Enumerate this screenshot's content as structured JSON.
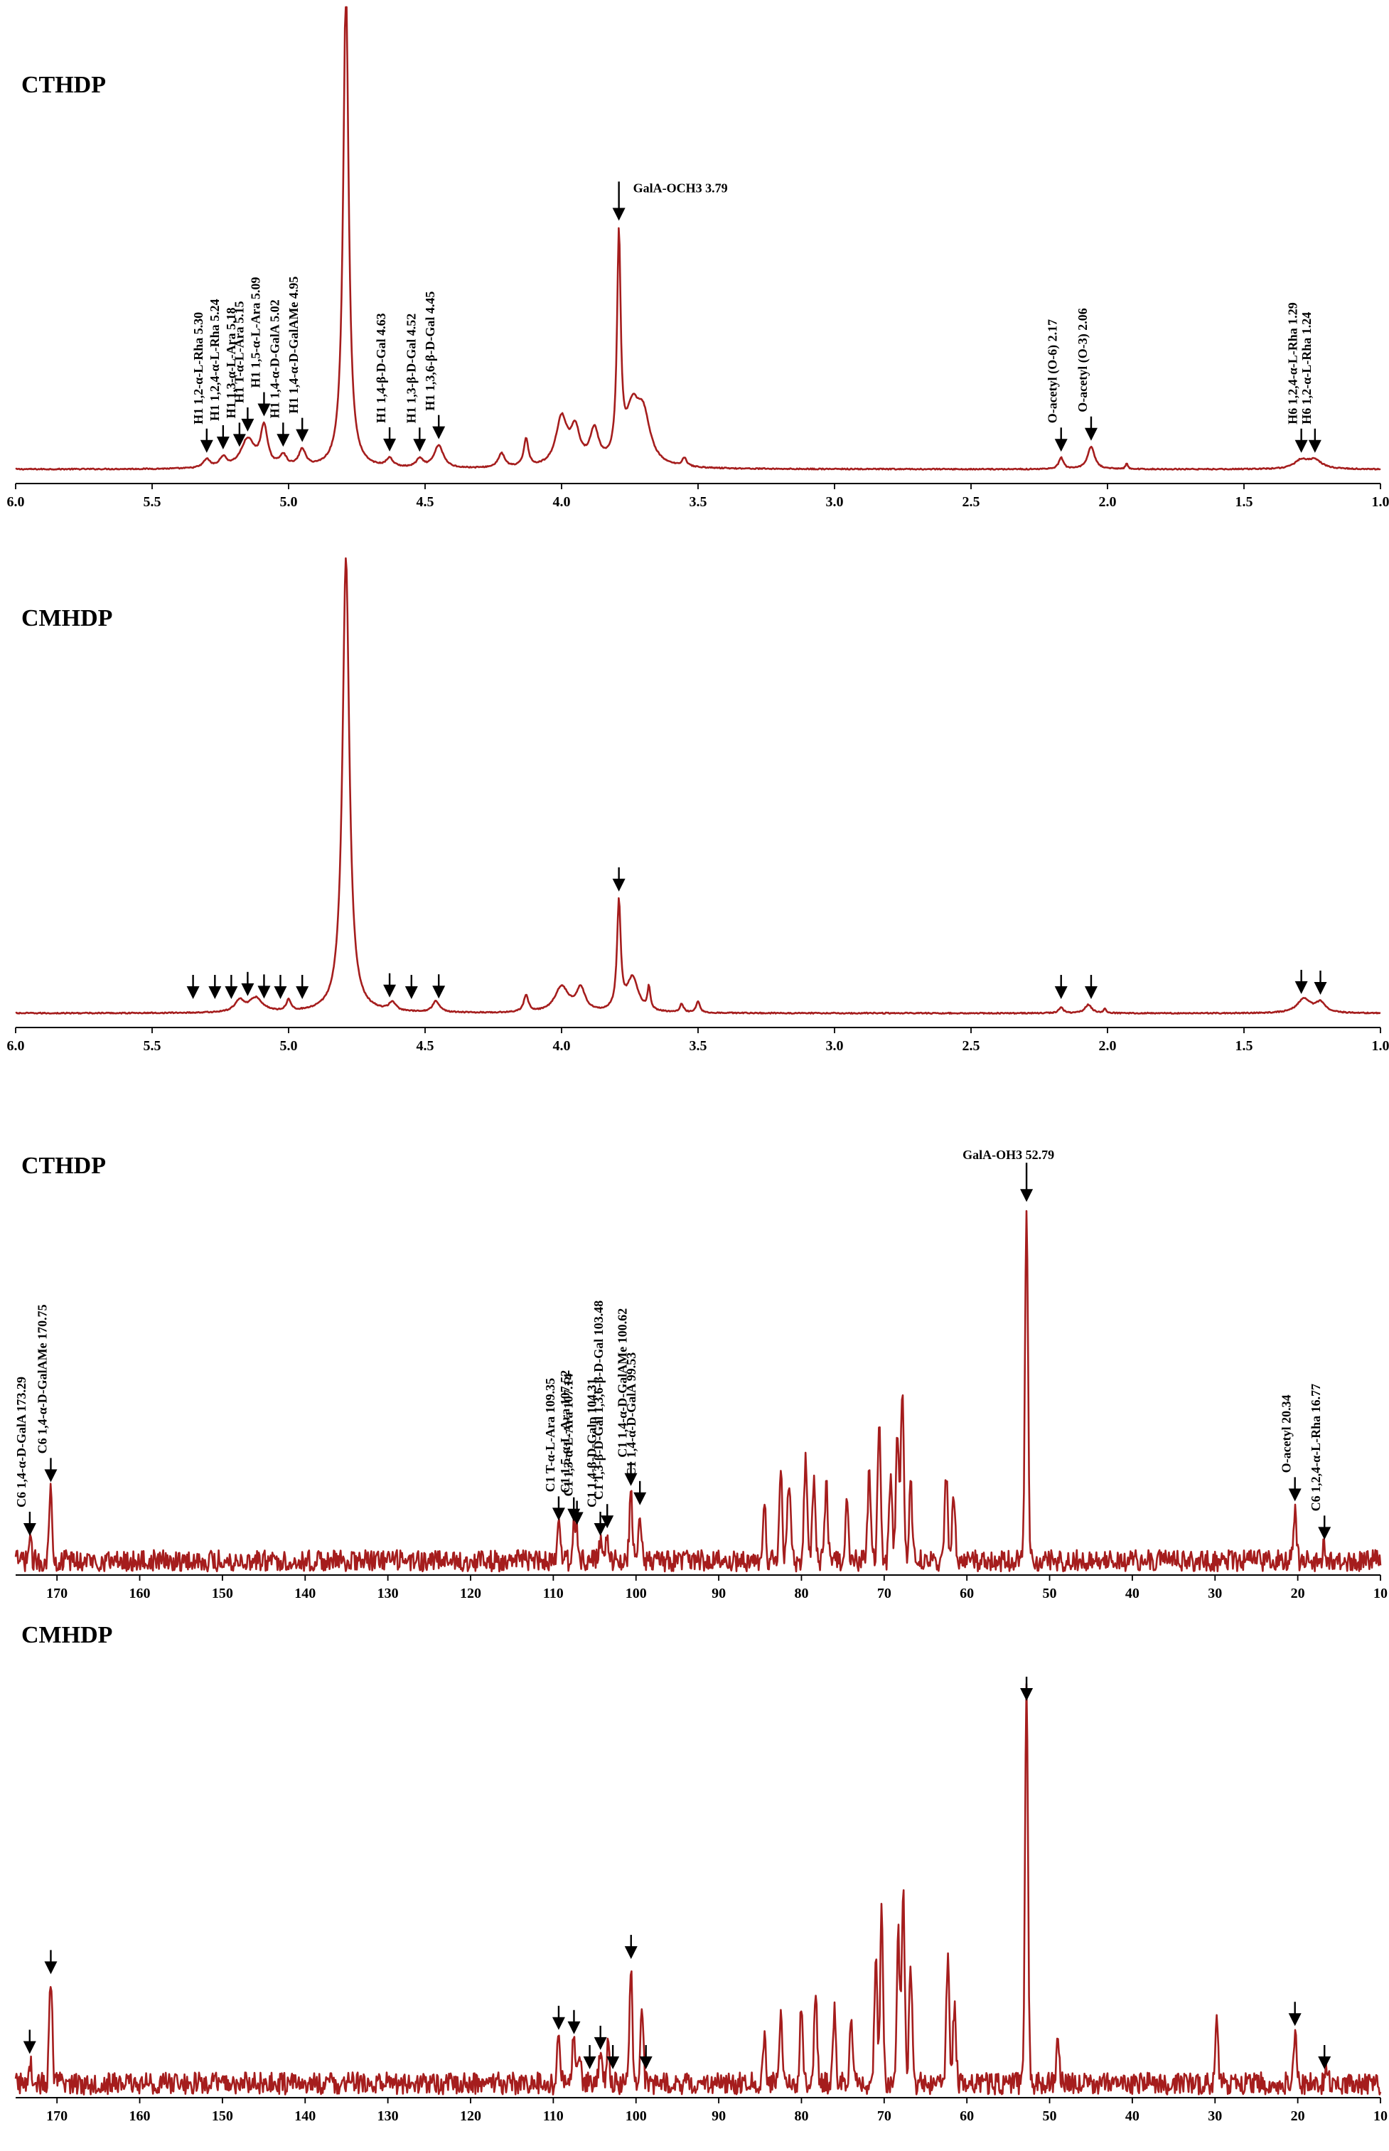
{
  "colors": {
    "spectrum": "#a51d1d",
    "axis": "#000000",
    "background": "#ffffff"
  },
  "chart_data": [
    {
      "type": "line",
      "nucleus": "1H",
      "title": "CTHDP",
      "xlim": [
        6.0,
        1.0
      ],
      "x_ticks": [
        6.0,
        5.5,
        5.0,
        4.5,
        4.0,
        3.5,
        3.0,
        2.5,
        2.0,
        1.5,
        1.0
      ],
      "tick_format": 1,
      "peaks": [
        {
          "x": 4.79,
          "h": 1.7,
          "w": 0.012
        },
        {
          "x": 3.79,
          "h": 0.78,
          "w": 0.008
        },
        {
          "x": 3.74,
          "h": 0.18,
          "w": 0.03
        },
        {
          "x": 3.7,
          "h": 0.16,
          "w": 0.03
        },
        {
          "x": 4.0,
          "h": 0.17,
          "w": 0.025
        },
        {
          "x": 3.95,
          "h": 0.12,
          "w": 0.02
        },
        {
          "x": 3.88,
          "h": 0.12,
          "w": 0.02
        },
        {
          "x": 4.13,
          "h": 0.1,
          "w": 0.01
        },
        {
          "x": 4.22,
          "h": 0.05,
          "w": 0.015
        },
        {
          "x": 3.55,
          "h": 0.03,
          "w": 0.01
        },
        {
          "x": 5.15,
          "h": 0.1,
          "w": 0.03
        },
        {
          "x": 5.09,
          "h": 0.14,
          "w": 0.015
        },
        {
          "x": 5.02,
          "h": 0.04,
          "w": 0.015
        },
        {
          "x": 4.95,
          "h": 0.06,
          "w": 0.015
        },
        {
          "x": 5.24,
          "h": 0.035,
          "w": 0.015
        },
        {
          "x": 5.3,
          "h": 0.03,
          "w": 0.015
        },
        {
          "x": 4.63,
          "h": 0.03,
          "w": 0.015
        },
        {
          "x": 4.52,
          "h": 0.03,
          "w": 0.015
        },
        {
          "x": 4.45,
          "h": 0.08,
          "w": 0.02
        },
        {
          "x": 2.17,
          "h": 0.04,
          "w": 0.01
        },
        {
          "x": 2.06,
          "h": 0.08,
          "w": 0.015
        },
        {
          "x": 1.93,
          "h": 0.02,
          "w": 0.005
        },
        {
          "x": 1.29,
          "h": 0.03,
          "w": 0.03
        },
        {
          "x": 1.24,
          "h": 0.03,
          "w": 0.03
        }
      ],
      "annotations": [
        {
          "x": 5.3,
          "label": "H1 1,2-α-L-Rha 5.30"
        },
        {
          "x": 5.24,
          "label": "H1 1,2,4-α-L-Rha 5.24"
        },
        {
          "x": 5.18,
          "label": "H1 1,3-α-L-Ara 5.18"
        },
        {
          "x": 5.15,
          "label": "H1 T-α-L-Ara 5.15"
        },
        {
          "x": 5.09,
          "label": "H1 1,5-α-L-Ara 5.09"
        },
        {
          "x": 5.02,
          "label": "H1 1,4-α-D-GalA 5.02"
        },
        {
          "x": 4.95,
          "label": "H1 1,4-α-D-GalAMe 4.95"
        },
        {
          "x": 4.63,
          "label": "H1 1,4-β-D-Gal 4.63"
        },
        {
          "x": 4.52,
          "label": "H1 1,3-β-D-Gal 4.52"
        },
        {
          "x": 4.45,
          "label": "H1 1,3,6-β-D-Gal 4.45"
        },
        {
          "x": 3.79,
          "label": "GalA-OCH3 3.79"
        },
        {
          "x": 2.17,
          "label": "O-acetyl (O-6) 2.17"
        },
        {
          "x": 2.06,
          "label": "O-acetyl (O-3) 2.06"
        },
        {
          "x": 1.29,
          "label": "H6 1,2,4-α-L-Rha 1.29"
        },
        {
          "x": 1.24,
          "label": "H6 1,2-α-L-Rha 1.24"
        }
      ]
    },
    {
      "type": "line",
      "nucleus": "1H",
      "title": "CMHDP",
      "xlim": [
        6.0,
        1.0
      ],
      "x_ticks": [
        6.0,
        5.5,
        5.0,
        4.5,
        4.0,
        3.5,
        3.0,
        2.5,
        2.0,
        1.5,
        1.0
      ],
      "tick_format": 1,
      "peaks": [
        {
          "x": 4.79,
          "h": 1.6,
          "w": 0.015
        },
        {
          "x": 3.79,
          "h": 0.38,
          "w": 0.008
        },
        {
          "x": 3.74,
          "h": 0.12,
          "w": 0.025
        },
        {
          "x": 3.68,
          "h": 0.08,
          "w": 0.006
        },
        {
          "x": 4.0,
          "h": 0.09,
          "w": 0.03
        },
        {
          "x": 3.93,
          "h": 0.08,
          "w": 0.02
        },
        {
          "x": 4.13,
          "h": 0.06,
          "w": 0.01
        },
        {
          "x": 3.5,
          "h": 0.04,
          "w": 0.008
        },
        {
          "x": 3.56,
          "h": 0.03,
          "w": 0.008
        },
        {
          "x": 5.12,
          "h": 0.05,
          "w": 0.03
        },
        {
          "x": 5.18,
          "h": 0.04,
          "w": 0.02
        },
        {
          "x": 5.0,
          "h": 0.04,
          "w": 0.01
        },
        {
          "x": 4.62,
          "h": 0.03,
          "w": 0.015
        },
        {
          "x": 4.46,
          "h": 0.04,
          "w": 0.015
        },
        {
          "x": 2.17,
          "h": 0.02,
          "w": 0.01
        },
        {
          "x": 2.07,
          "h": 0.03,
          "w": 0.015
        },
        {
          "x": 2.01,
          "h": 0.015,
          "w": 0.005
        },
        {
          "x": 1.28,
          "h": 0.05,
          "w": 0.03
        },
        {
          "x": 1.22,
          "h": 0.035,
          "w": 0.02
        }
      ],
      "arrows": [
        5.35,
        5.27,
        5.21,
        5.15,
        5.09,
        5.03,
        4.95,
        4.63,
        4.55,
        4.45,
        3.79,
        2.17,
        2.06,
        1.29,
        1.22
      ]
    },
    {
      "type": "line",
      "nucleus": "13C",
      "title": "CTHDP",
      "xlim": [
        175,
        10
      ],
      "x_ticks": [
        170,
        160,
        150,
        140,
        130,
        120,
        110,
        100,
        90,
        80,
        70,
        60,
        50,
        40,
        30,
        20,
        10
      ],
      "tick_format": 0,
      "noise": 0.035,
      "peaks": [
        {
          "x": 52.79,
          "h": 0.92
        },
        {
          "x": 170.75,
          "h": 0.19
        },
        {
          "x": 173.29,
          "h": 0.05
        },
        {
          "x": 109.35,
          "h": 0.09
        },
        {
          "x": 107.52,
          "h": 0.08
        },
        {
          "x": 107.14,
          "h": 0.07
        },
        {
          "x": 104.31,
          "h": 0.05
        },
        {
          "x": 103.48,
          "h": 0.07
        },
        {
          "x": 100.62,
          "h": 0.18
        },
        {
          "x": 99.53,
          "h": 0.13
        },
        {
          "x": 84.5,
          "h": 0.15
        },
        {
          "x": 82.5,
          "h": 0.25
        },
        {
          "x": 81.5,
          "h": 0.22
        },
        {
          "x": 79.5,
          "h": 0.27
        },
        {
          "x": 78.5,
          "h": 0.22
        },
        {
          "x": 77.0,
          "h": 0.2
        },
        {
          "x": 74.5,
          "h": 0.14
        },
        {
          "x": 71.8,
          "h": 0.23
        },
        {
          "x": 70.6,
          "h": 0.38
        },
        {
          "x": 69.2,
          "h": 0.24
        },
        {
          "x": 68.4,
          "h": 0.32
        },
        {
          "x": 67.8,
          "h": 0.44
        },
        {
          "x": 66.8,
          "h": 0.2
        },
        {
          "x": 62.5,
          "h": 0.23
        },
        {
          "x": 61.6,
          "h": 0.17
        },
        {
          "x": 20.34,
          "h": 0.14
        },
        {
          "x": 16.77,
          "h": 0.04
        }
      ],
      "annotations": [
        {
          "x": 173.29,
          "label": "C6 1,4-α-D-GalA 173.29"
        },
        {
          "x": 170.75,
          "label": "C6 1,4-α-D-GalAMe 170.75"
        },
        {
          "x": 109.35,
          "label": "C1 T-α-L-Ara 109.35"
        },
        {
          "x": 107.52,
          "label": "C1 1,5-α-L-Ara 107.52"
        },
        {
          "x": 107.14,
          "label": "C1 1,3-α-L-Ara 107.14"
        },
        {
          "x": 104.31,
          "label": "C1 1,4-β-D-Galp 104.31"
        },
        {
          "x": 103.48,
          "label": "C1 1,3-β-D-Gal 1,3,6-β-D-Gal 103.48"
        },
        {
          "x": 100.62,
          "label": "C1 1,4-α-D-GalAMe 100.62"
        },
        {
          "x": 99.53,
          "label": "C1 1,4-α-D-GalA 99.53"
        },
        {
          "x": 52.79,
          "label": "GalA-OH3 52.79"
        },
        {
          "x": 20.34,
          "label": "O-acetyl 20.34"
        },
        {
          "x": 16.77,
          "label": "C6 1,2,4-α-L-Rha 16.77"
        }
      ]
    },
    {
      "type": "line",
      "nucleus": "13C",
      "title": "CMHDP",
      "xlim": [
        175,
        10
      ],
      "x_ticks": [
        170,
        160,
        150,
        140,
        130,
        120,
        110,
        100,
        90,
        80,
        70,
        60,
        50,
        40,
        30,
        20,
        10
      ],
      "tick_format": 0,
      "noise": 0.035,
      "peaks": [
        {
          "x": 52.79,
          "h": 1.0
        },
        {
          "x": 170.75,
          "h": 0.26
        },
        {
          "x": 173.29,
          "h": 0.06
        },
        {
          "x": 109.35,
          "h": 0.12
        },
        {
          "x": 107.52,
          "h": 0.11
        },
        {
          "x": 106.8,
          "h": 0.09
        },
        {
          "x": 104.31,
          "h": 0.07
        },
        {
          "x": 103.4,
          "h": 0.1
        },
        {
          "x": 100.62,
          "h": 0.3
        },
        {
          "x": 99.3,
          "h": 0.18
        },
        {
          "x": 84.5,
          "h": 0.12
        },
        {
          "x": 82.5,
          "h": 0.18
        },
        {
          "x": 80.0,
          "h": 0.2
        },
        {
          "x": 78.3,
          "h": 0.24
        },
        {
          "x": 76.0,
          "h": 0.18
        },
        {
          "x": 74.0,
          "h": 0.16
        },
        {
          "x": 71.0,
          "h": 0.3
        },
        {
          "x": 70.3,
          "h": 0.43
        },
        {
          "x": 68.3,
          "h": 0.38
        },
        {
          "x": 67.7,
          "h": 0.49
        },
        {
          "x": 66.8,
          "h": 0.3
        },
        {
          "x": 62.3,
          "h": 0.33
        },
        {
          "x": 61.5,
          "h": 0.2
        },
        {
          "x": 49.0,
          "h": 0.12
        },
        {
          "x": 29.8,
          "h": 0.17
        },
        {
          "x": 20.34,
          "h": 0.13
        },
        {
          "x": 16.5,
          "h": 0.05
        }
      ],
      "arrows": [
        173.3,
        170.75,
        109.35,
        107.5,
        105.6,
        104.3,
        102.8,
        100.6,
        98.8,
        52.79,
        20.34,
        16.77
      ]
    }
  ]
}
